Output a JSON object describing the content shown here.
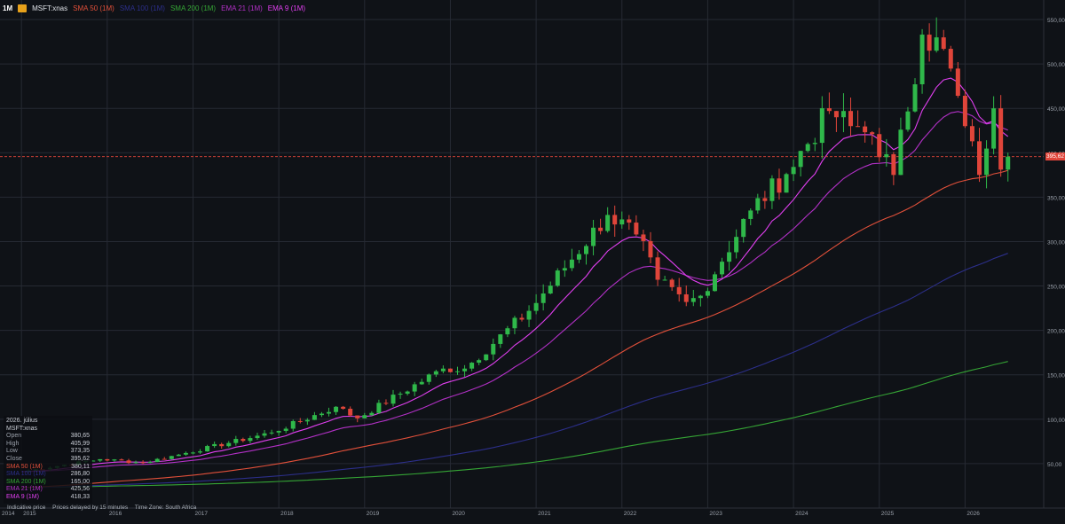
{
  "header": {
    "timeframe": "1M",
    "symbol": "MSFT:xnas",
    "indicators": [
      {
        "label": "SMA 50 (1M)",
        "color": "#e2503a"
      },
      {
        "label": "SMA 100 (1M)",
        "color": "#2c2f8a"
      },
      {
        "label": "SMA 200 (1M)",
        "color": "#35a535"
      },
      {
        "label": "EMA 21 (1M)",
        "color": "#b230c6"
      },
      {
        "label": "EMA 9 (1M)",
        "color": "#e13ff0"
      }
    ]
  },
  "info_panel": {
    "date": "2026. július",
    "symbol": "MSFT:xnas",
    "rows": [
      {
        "label": "Open",
        "value": "380,65"
      },
      {
        "label": "High",
        "value": "405,99"
      },
      {
        "label": "Low",
        "value": "373,35"
      },
      {
        "label": "Close",
        "value": "395,62"
      }
    ],
    "indicator_rows": [
      {
        "label": "SMA 50 (1M)",
        "value": "380,11",
        "color": "#e2503a"
      },
      {
        "label": "SMA 100 (1M)",
        "value": "286,80",
        "color": "#2c2f8a"
      },
      {
        "label": "SMA 200 (1M)",
        "value": "165,00",
        "color": "#35a535"
      },
      {
        "label": "EMA 21 (1M)",
        "value": "425,56",
        "color": "#b230c6"
      },
      {
        "label": "EMA 9 (1M)",
        "value": "418,33",
        "color": "#e13ff0"
      }
    ]
  },
  "footer": {
    "indicative": "Indicative price",
    "delay": "Prices delayed by 15 minutes",
    "timezone": "Time Zone: South Africa"
  },
  "last_price_label": "395,62",
  "colors": {
    "background": "#0f1217",
    "grid": "#262a33",
    "up": "#2fb84a",
    "down": "#e0453a",
    "price_line": "#e0453a"
  },
  "chart_data": {
    "type": "candlestick",
    "title": "MSFT:xnas",
    "timeframe": "1M",
    "ylim": [
      0,
      560
    ],
    "y_ticks": [
      50,
      100,
      150,
      200,
      250,
      300,
      350,
      400,
      450,
      500,
      550
    ],
    "y_tick_labels": [
      "50,00",
      "100,00",
      "150,00",
      "200,00",
      "250,00",
      "300,00",
      "350,00",
      "400,00",
      "450,00",
      "500,00",
      "550,00"
    ],
    "x_range": [
      "2014-10",
      "2026-12"
    ],
    "x_ticks": [
      "2014",
      "2015",
      "2016",
      "2017",
      "2018",
      "2019",
      "2020",
      "2021",
      "2022",
      "2023",
      "2024",
      "2025",
      "2026"
    ],
    "last_price": 395.62,
    "close_anchors": [
      {
        "t": "2015-01",
        "v": 41
      },
      {
        "t": "2015-12",
        "v": 55
      },
      {
        "t": "2016-06",
        "v": 51
      },
      {
        "t": "2016-12",
        "v": 62
      },
      {
        "t": "2017-12",
        "v": 85
      },
      {
        "t": "2018-09",
        "v": 114
      },
      {
        "t": "2018-12",
        "v": 101
      },
      {
        "t": "2019-12",
        "v": 157
      },
      {
        "t": "2020-03",
        "v": 157
      },
      {
        "t": "2020-12",
        "v": 222
      },
      {
        "t": "2021-11",
        "v": 330
      },
      {
        "t": "2022-03",
        "v": 308
      },
      {
        "t": "2022-06",
        "v": 257
      },
      {
        "t": "2022-10",
        "v": 232
      },
      {
        "t": "2022-12",
        "v": 239
      },
      {
        "t": "2023-07",
        "v": 335
      },
      {
        "t": "2023-12",
        "v": 376
      },
      {
        "t": "2024-06",
        "v": 447
      },
      {
        "t": "2024-09",
        "v": 430
      },
      {
        "t": "2024-12",
        "v": 421
      },
      {
        "t": "2025-03",
        "v": 375
      },
      {
        "t": "2025-07",
        "v": 533
      },
      {
        "t": "2025-10",
        "v": 517
      },
      {
        "t": "2026-01",
        "v": 430
      },
      {
        "t": "2026-03",
        "v": 375
      },
      {
        "t": "2026-05",
        "v": 450
      },
      {
        "t": "2026-06",
        "v": 381
      },
      {
        "t": "2026-07",
        "v": 395.62
      }
    ],
    "series": [
      {
        "name": "SMA 50 (1M)",
        "last": 380.11
      },
      {
        "name": "SMA 100 (1M)",
        "last": 286.8
      },
      {
        "name": "SMA 200 (1M)",
        "last": 165.0
      },
      {
        "name": "EMA 21 (1M)",
        "last": 425.56
      },
      {
        "name": "EMA 9 (1M)",
        "last": 418.33
      }
    ],
    "grid": true,
    "legend_position": "top-left"
  }
}
